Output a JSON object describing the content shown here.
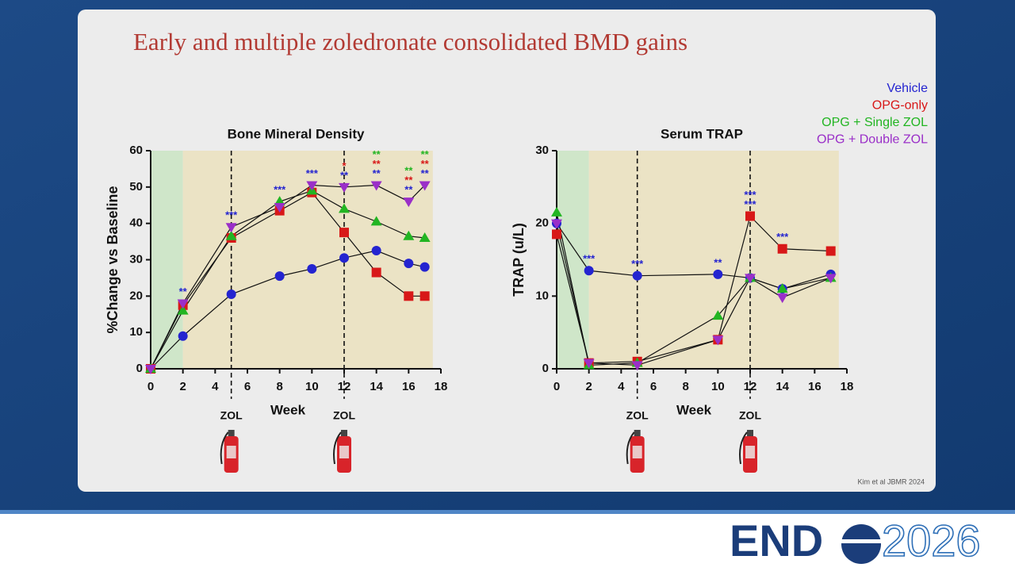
{
  "slide_title": "Early and multiple zoledronate consolidated BMD gains",
  "citation": "Kim et al JBMR 2024",
  "logo": {
    "left": "END",
    "right": "2026"
  },
  "chart_data": [
    {
      "type": "line",
      "title": "Bone Mineral Density",
      "x_label": "Week",
      "y_label": "%Change vs Baseline",
      "x": [
        0,
        2,
        5,
        8,
        10,
        12,
        14,
        16,
        17
      ],
      "xlim": [
        0,
        18
      ],
      "xticks": [
        0,
        2,
        4,
        6,
        8,
        10,
        12,
        14,
        16,
        18
      ],
      "ylim": [
        0,
        60
      ],
      "yticks": [
        0,
        10,
        20,
        30,
        40,
        50,
        60
      ],
      "line_color": "#111111",
      "shade": [
        {
          "from": 0,
          "to": 2,
          "color": "#cfe6c9"
        },
        {
          "from": 2,
          "to": 17.5,
          "color": "#ebe3c5"
        }
      ],
      "vlines": [
        {
          "x": 5,
          "label": "ZOL"
        },
        {
          "x": 12,
          "label": "ZOL"
        }
      ],
      "series": [
        {
          "name": "Vehicle",
          "color": "#2424d0",
          "marker": "circle",
          "values": [
            0,
            9,
            20.5,
            25.5,
            27.5,
            30.5,
            32.5,
            29,
            28
          ]
        },
        {
          "name": "OPG-only",
          "color": "#d81818",
          "marker": "square",
          "values": [
            0,
            17.5,
            36,
            43.5,
            48.5,
            37.5,
            26.5,
            20,
            20
          ]
        },
        {
          "name": "OPG + Single ZOL",
          "color": "#22b522",
          "marker": "triangle-up",
          "values": [
            0,
            16,
            36.5,
            46,
            49,
            44,
            40.5,
            36.5,
            36
          ]
        },
        {
          "name": "OPG + Double ZOL",
          "color": "#9a2fc8",
          "marker": "triangle-down",
          "values": [
            0,
            18,
            39,
            44.5,
            50.5,
            50,
            50.5,
            46,
            50.5
          ]
        }
      ],
      "significance": [
        {
          "x": 2,
          "labels": [
            "**"
          ],
          "colors": [
            "#2424d0"
          ]
        },
        {
          "x": 5,
          "labels": [
            "***"
          ],
          "colors": [
            "#2424d0"
          ]
        },
        {
          "x": 8,
          "labels": [
            "***"
          ],
          "colors": [
            "#2424d0"
          ]
        },
        {
          "x": 10,
          "labels": [
            "***"
          ],
          "colors": [
            "#2424d0"
          ]
        },
        {
          "x": 12,
          "labels": [
            "*",
            "**"
          ],
          "colors": [
            "#d81818",
            "#2424d0"
          ]
        },
        {
          "x": 14,
          "labels": [
            "**",
            "**",
            "**"
          ],
          "colors": [
            "#22b522",
            "#d81818",
            "#2424d0"
          ]
        },
        {
          "x": 16,
          "labels": [
            "**",
            "**",
            "**"
          ],
          "colors": [
            "#22b522",
            "#d81818",
            "#2424d0"
          ]
        },
        {
          "x": 17,
          "labels": [
            "**",
            "**",
            "**"
          ],
          "colors": [
            "#22b522",
            "#d81818",
            "#2424d0"
          ]
        }
      ]
    },
    {
      "type": "line",
      "title": "Serum TRAP",
      "x_label": "Week",
      "y_label": "TRAP (u/L)",
      "x": [
        0,
        2,
        5,
        10,
        12,
        14,
        17
      ],
      "xlim": [
        0,
        18
      ],
      "xticks": [
        0,
        2,
        4,
        6,
        8,
        10,
        12,
        14,
        16,
        18
      ],
      "ylim": [
        0,
        30
      ],
      "yticks": [
        0,
        10,
        20,
        30
      ],
      "line_color": "#111111",
      "shade": [
        {
          "from": 0,
          "to": 2,
          "color": "#cfe6c9"
        },
        {
          "from": 2,
          "to": 17.5,
          "color": "#ebe3c5"
        }
      ],
      "vlines": [
        {
          "x": 5,
          "label": "ZOL"
        },
        {
          "x": 12,
          "label": "ZOL"
        }
      ],
      "series": [
        {
          "name": "Vehicle",
          "color": "#2424d0",
          "marker": "circle",
          "values": [
            20,
            13.5,
            12.8,
            13,
            12.5,
            11,
            13
          ]
        },
        {
          "name": "OPG-only",
          "color": "#d81818",
          "marker": "square",
          "values": [
            18.5,
            0.8,
            1,
            4,
            21,
            16.5,
            16.2
          ]
        },
        {
          "name": "OPG + Single ZOL",
          "color": "#22b522",
          "marker": "triangle-up",
          "values": [
            21.5,
            0.5,
            0.8,
            7.3,
            12.5,
            11,
            12.5
          ]
        },
        {
          "name": "OPG + Double ZOL",
          "color": "#9a2fc8",
          "marker": "triangle-down",
          "values": [
            20,
            0.8,
            0.5,
            4,
            12.5,
            9.8,
            12.5
          ]
        }
      ],
      "significance": [
        {
          "x": 2,
          "labels": [
            "***"
          ],
          "colors": [
            "#2424d0"
          ]
        },
        {
          "x": 5,
          "labels": [
            "***"
          ],
          "colors": [
            "#2424d0"
          ]
        },
        {
          "x": 10,
          "labels": [
            "**"
          ],
          "colors": [
            "#2424d0"
          ]
        },
        {
          "x": 12,
          "labels": [
            "***",
            "***"
          ],
          "colors": [
            "#2424d0",
            "#2424d0"
          ]
        },
        {
          "x": 14,
          "labels": [
            "***"
          ],
          "colors": [
            "#2424d0"
          ]
        }
      ]
    }
  ]
}
